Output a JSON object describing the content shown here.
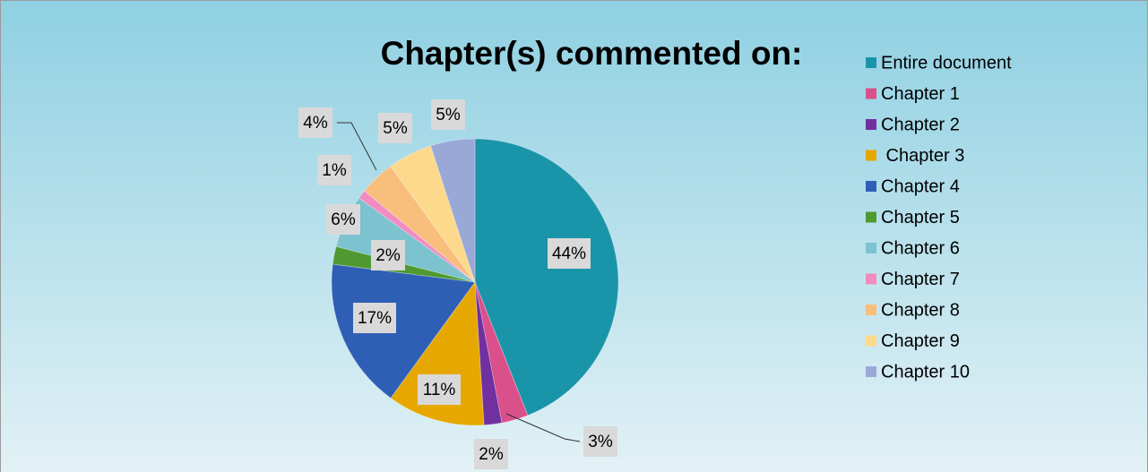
{
  "chart_data": {
    "type": "pie",
    "title": "Chapter(s) commented on:",
    "categories": [
      "Entire document",
      "Chapter 1",
      "Chapter 2",
      " Chapter 3",
      "Chapter 4",
      "Chapter 5",
      "Chapter 6",
      "Chapter 7",
      "Chapter 8",
      "Chapter 9",
      "Chapter 10"
    ],
    "values": [
      44,
      3,
      2,
      11,
      17,
      2,
      6,
      1,
      4,
      5,
      5
    ],
    "value_labels": [
      "44%",
      "3%",
      "2%",
      "11%",
      "17%",
      "2%",
      "6%",
      "1%",
      "4%",
      "5%",
      "5%"
    ],
    "colors": [
      "#1a94a9",
      "#d9508a",
      "#7030a0",
      "#e6a800",
      "#2f5fb5",
      "#4f9a30",
      "#7dc2cf",
      "#f28cc0",
      "#f8be7c",
      "#fdd98c",
      "#9aa8d8"
    ],
    "legend": "right"
  }
}
